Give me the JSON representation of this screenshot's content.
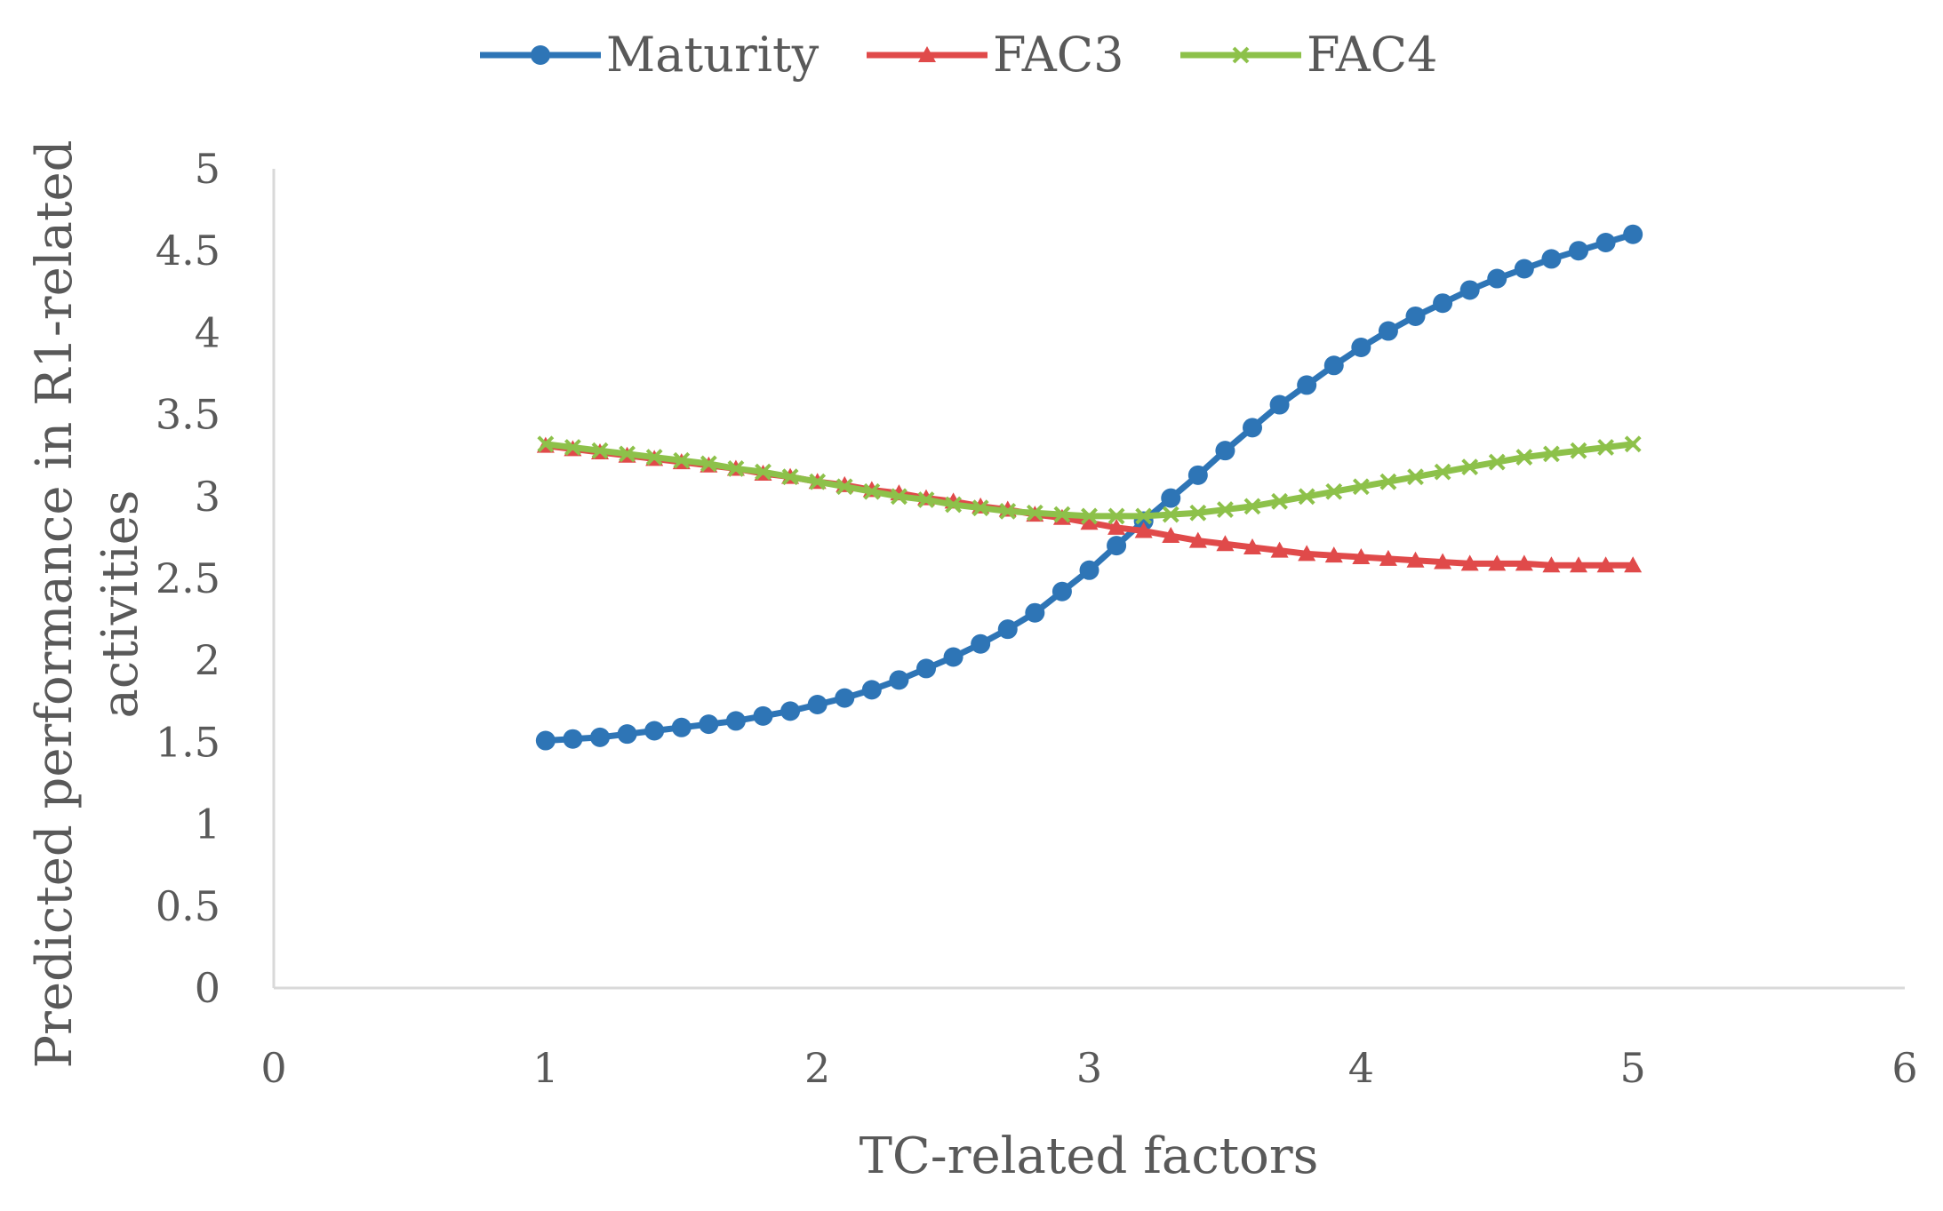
{
  "chart_data": {
    "type": "line",
    "title": "",
    "xlabel": "TC-related factors",
    "ylabel": [
      "Predicted performance in R1-related",
      "activities"
    ],
    "xlim": [
      0,
      6
    ],
    "ylim": [
      0,
      5
    ],
    "xticks": [
      "0",
      "1",
      "2",
      "3",
      "4",
      "5",
      "6"
    ],
    "yticks": [
      "0",
      "0.5",
      "1",
      "1.5",
      "2",
      "2.5",
      "3",
      "3.5",
      "4",
      "4.5",
      "5"
    ],
    "grid": false,
    "legend_position": "top-center",
    "x": [
      1.0,
      1.1,
      1.2,
      1.3,
      1.4,
      1.5,
      1.6,
      1.7,
      1.8,
      1.9,
      2.0,
      2.1,
      2.2,
      2.3,
      2.4,
      2.5,
      2.6,
      2.7,
      2.8,
      2.9,
      3.0,
      3.1,
      3.2,
      3.3,
      3.4,
      3.5,
      3.6,
      3.7,
      3.8,
      3.9,
      4.0,
      4.1,
      4.2,
      4.3,
      4.4,
      4.5,
      4.6,
      4.7,
      4.8,
      4.9,
      5.0
    ],
    "series": [
      {
        "name": "Maturity",
        "color": "#2E75B6",
        "marker": "circle",
        "values": [
          1.51,
          1.52,
          1.53,
          1.55,
          1.57,
          1.59,
          1.61,
          1.63,
          1.66,
          1.69,
          1.73,
          1.77,
          1.82,
          1.88,
          1.95,
          2.02,
          2.1,
          2.19,
          2.29,
          2.42,
          2.55,
          2.7,
          2.85,
          2.99,
          3.13,
          3.28,
          3.42,
          3.56,
          3.68,
          3.8,
          3.91,
          4.01,
          4.1,
          4.18,
          4.26,
          4.33,
          4.39,
          4.45,
          4.5,
          4.55,
          4.6
        ]
      },
      {
        "name": "FAC3",
        "color": "#E04A4A",
        "marker": "triangle",
        "values": [
          3.31,
          3.29,
          3.27,
          3.25,
          3.23,
          3.21,
          3.19,
          3.17,
          3.14,
          3.12,
          3.09,
          3.07,
          3.04,
          3.02,
          2.99,
          2.97,
          2.94,
          2.92,
          2.89,
          2.87,
          2.84,
          2.81,
          2.79,
          2.76,
          2.73,
          2.71,
          2.69,
          2.67,
          2.65,
          2.64,
          2.63,
          2.62,
          2.61,
          2.6,
          2.59,
          2.59,
          2.59,
          2.58,
          2.58,
          2.58,
          2.58
        ]
      },
      {
        "name": "FAC4",
        "color": "#8DC14A",
        "marker": "x",
        "values": [
          3.32,
          3.3,
          3.28,
          3.26,
          3.24,
          3.22,
          3.2,
          3.17,
          3.15,
          3.12,
          3.09,
          3.06,
          3.03,
          3.0,
          2.98,
          2.95,
          2.93,
          2.91,
          2.9,
          2.89,
          2.88,
          2.88,
          2.88,
          2.89,
          2.9,
          2.92,
          2.94,
          2.97,
          3.0,
          3.03,
          3.06,
          3.09,
          3.12,
          3.15,
          3.18,
          3.21,
          3.24,
          3.26,
          3.28,
          3.3,
          3.32
        ]
      }
    ]
  }
}
